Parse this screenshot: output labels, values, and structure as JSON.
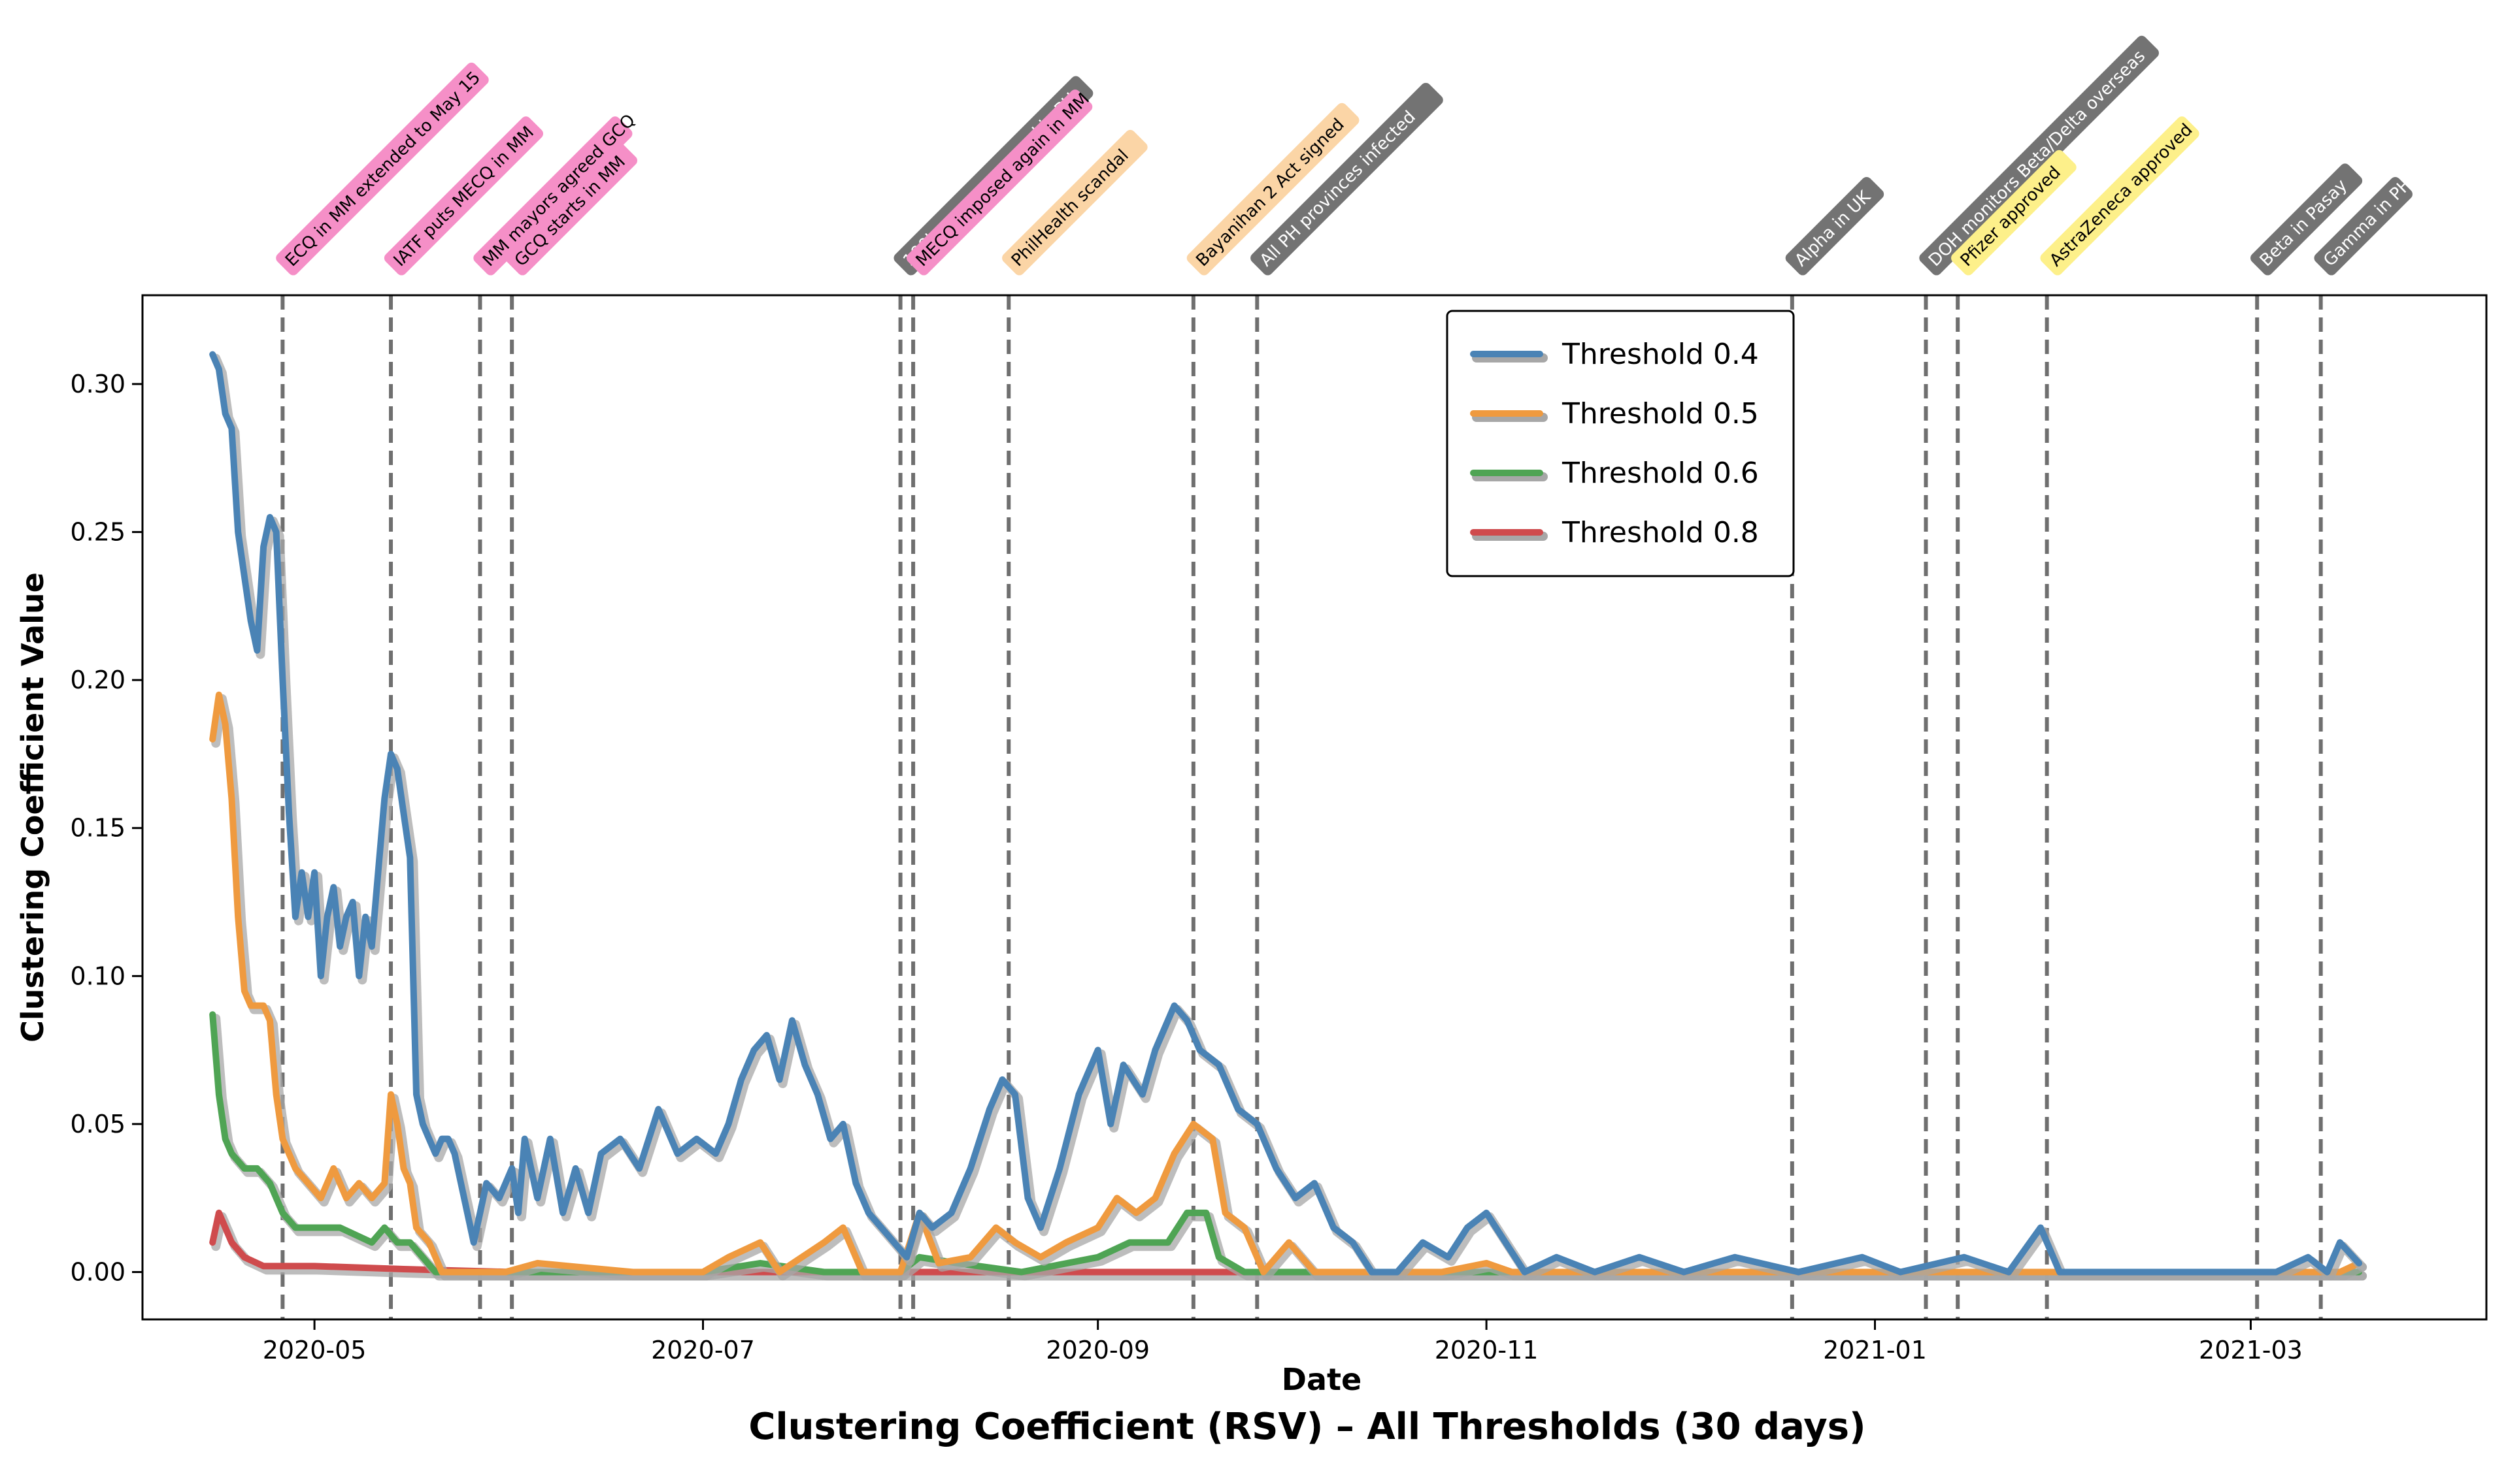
{
  "chart_data": {
    "type": "line",
    "title": "Clustering Coefficient (RSV) – All Thresholds (30 days)",
    "xlabel": "Date",
    "ylabel": "Clustering Coefficient Value",
    "x_type": "date",
    "xlim": [
      "2020-04-04",
      "2021-04-07"
    ],
    "ylim": [
      -0.016,
      0.33
    ],
    "x_ticks": [
      {
        "date": "2020-05-01",
        "label": "2020-05"
      },
      {
        "date": "2020-07-01",
        "label": "2020-07"
      },
      {
        "date": "2020-09-01",
        "label": "2020-09"
      },
      {
        "date": "2020-11-01",
        "label": "2020-11"
      },
      {
        "date": "2021-01-01",
        "label": "2021-01"
      },
      {
        "date": "2021-03-01",
        "label": "2021-03"
      }
    ],
    "y_ticks": [
      0.0,
      0.05,
      0.1,
      0.15,
      0.2,
      0.25,
      0.3
    ],
    "y_tick_labels": [
      "0.00",
      "0.05",
      "0.10",
      "0.15",
      "0.20",
      "0.25",
      "0.30"
    ],
    "grid": false,
    "legend_position": "top-center",
    "series": [
      {
        "name": "Threshold 0.4",
        "color": "#4a83b5",
        "points": [
          [
            "2020-04-15",
            0.31
          ],
          [
            "2020-04-16",
            0.305
          ],
          [
            "2020-04-17",
            0.29
          ],
          [
            "2020-04-18",
            0.285
          ],
          [
            "2020-04-19",
            0.25
          ],
          [
            "2020-04-20",
            0.235
          ],
          [
            "2020-04-21",
            0.22
          ],
          [
            "2020-04-22",
            0.21
          ],
          [
            "2020-04-23",
            0.245
          ],
          [
            "2020-04-24",
            0.255
          ],
          [
            "2020-04-25",
            0.25
          ],
          [
            "2020-04-26",
            0.2
          ],
          [
            "2020-04-27",
            0.155
          ],
          [
            "2020-04-28",
            0.12
          ],
          [
            "2020-04-29",
            0.135
          ],
          [
            "2020-04-30",
            0.12
          ],
          [
            "2020-05-01",
            0.135
          ],
          [
            "2020-05-02",
            0.1
          ],
          [
            "2020-05-03",
            0.12
          ],
          [
            "2020-05-04",
            0.13
          ],
          [
            "2020-05-05",
            0.11
          ],
          [
            "2020-05-06",
            0.12
          ],
          [
            "2020-05-07",
            0.125
          ],
          [
            "2020-05-08",
            0.1
          ],
          [
            "2020-05-09",
            0.12
          ],
          [
            "2020-05-10",
            0.11
          ],
          [
            "2020-05-11",
            0.135
          ],
          [
            "2020-05-12",
            0.16
          ],
          [
            "2020-05-13",
            0.175
          ],
          [
            "2020-05-14",
            0.17
          ],
          [
            "2020-05-15",
            0.155
          ],
          [
            "2020-05-16",
            0.14
          ],
          [
            "2020-05-17",
            0.06
          ],
          [
            "2020-05-18",
            0.05
          ],
          [
            "2020-05-19",
            0.045
          ],
          [
            "2020-05-20",
            0.04
          ],
          [
            "2020-05-21",
            0.045
          ],
          [
            "2020-05-22",
            0.045
          ],
          [
            "2020-05-23",
            0.04
          ],
          [
            "2020-05-24",
            0.03
          ],
          [
            "2020-05-26",
            0.01
          ],
          [
            "2020-05-28",
            0.03
          ],
          [
            "2020-05-30",
            0.025
          ],
          [
            "2020-06-01",
            0.035
          ],
          [
            "2020-06-02",
            0.02
          ],
          [
            "2020-06-03",
            0.045
          ],
          [
            "2020-06-05",
            0.025
          ],
          [
            "2020-06-07",
            0.045
          ],
          [
            "2020-06-09",
            0.02
          ],
          [
            "2020-06-11",
            0.035
          ],
          [
            "2020-06-13",
            0.02
          ],
          [
            "2020-06-15",
            0.04
          ],
          [
            "2020-06-18",
            0.045
          ],
          [
            "2020-06-21",
            0.035
          ],
          [
            "2020-06-24",
            0.055
          ],
          [
            "2020-06-27",
            0.04
          ],
          [
            "2020-06-30",
            0.045
          ],
          [
            "2020-07-03",
            0.04
          ],
          [
            "2020-07-05",
            0.05
          ],
          [
            "2020-07-07",
            0.065
          ],
          [
            "2020-07-09",
            0.075
          ],
          [
            "2020-07-11",
            0.08
          ],
          [
            "2020-07-13",
            0.065
          ],
          [
            "2020-07-15",
            0.085
          ],
          [
            "2020-07-17",
            0.07
          ],
          [
            "2020-07-19",
            0.06
          ],
          [
            "2020-07-21",
            0.045
          ],
          [
            "2020-07-23",
            0.05
          ],
          [
            "2020-07-25",
            0.03
          ],
          [
            "2020-07-27",
            0.02
          ],
          [
            "2020-07-29",
            0.015
          ],
          [
            "2020-07-31",
            0.01
          ],
          [
            "2020-08-02",
            0.005
          ],
          [
            "2020-08-04",
            0.02
          ],
          [
            "2020-08-06",
            0.015
          ],
          [
            "2020-08-09",
            0.02
          ],
          [
            "2020-08-12",
            0.035
          ],
          [
            "2020-08-15",
            0.055
          ],
          [
            "2020-08-17",
            0.065
          ],
          [
            "2020-08-19",
            0.06
          ],
          [
            "2020-08-21",
            0.025
          ],
          [
            "2020-08-23",
            0.015
          ],
          [
            "2020-08-26",
            0.035
          ],
          [
            "2020-08-29",
            0.06
          ],
          [
            "2020-09-01",
            0.075
          ],
          [
            "2020-09-03",
            0.05
          ],
          [
            "2020-09-05",
            0.07
          ],
          [
            "2020-09-08",
            0.06
          ],
          [
            "2020-09-10",
            0.075
          ],
          [
            "2020-09-13",
            0.09
          ],
          [
            "2020-09-15",
            0.085
          ],
          [
            "2020-09-17",
            0.075
          ],
          [
            "2020-09-20",
            0.07
          ],
          [
            "2020-09-23",
            0.055
          ],
          [
            "2020-09-26",
            0.05
          ],
          [
            "2020-09-29",
            0.035
          ],
          [
            "2020-10-02",
            0.025
          ],
          [
            "2020-10-05",
            0.03
          ],
          [
            "2020-10-08",
            0.015
          ],
          [
            "2020-10-11",
            0.01
          ],
          [
            "2020-10-14",
            0.0
          ],
          [
            "2020-10-18",
            0.0
          ],
          [
            "2020-10-22",
            0.01
          ],
          [
            "2020-10-26",
            0.005
          ],
          [
            "2020-10-29",
            0.015
          ],
          [
            "2020-11-01",
            0.02
          ],
          [
            "2020-11-04",
            0.01
          ],
          [
            "2020-11-07",
            0.0
          ],
          [
            "2020-11-12",
            0.005
          ],
          [
            "2020-11-18",
            0.0
          ],
          [
            "2020-11-25",
            0.005
          ],
          [
            "2020-12-02",
            0.0
          ],
          [
            "2020-12-10",
            0.005
          ],
          [
            "2020-12-20",
            0.0
          ],
          [
            "2020-12-30",
            0.005
          ],
          [
            "2021-01-05",
            0.0
          ],
          [
            "2021-01-15",
            0.005
          ],
          [
            "2021-01-22",
            0.0
          ],
          [
            "2021-01-27",
            0.015
          ],
          [
            "2021-01-30",
            0.0
          ],
          [
            "2021-02-10",
            0.0
          ],
          [
            "2021-02-20",
            0.0
          ],
          [
            "2021-03-05",
            0.0
          ],
          [
            "2021-03-10",
            0.005
          ],
          [
            "2021-03-13",
            0.0
          ],
          [
            "2021-03-15",
            0.01
          ],
          [
            "2021-03-18",
            0.003
          ]
        ]
      },
      {
        "name": "Threshold 0.5",
        "color": "#ef9a3f",
        "points": [
          [
            "2020-04-15",
            0.18
          ],
          [
            "2020-04-16",
            0.195
          ],
          [
            "2020-04-17",
            0.185
          ],
          [
            "2020-04-18",
            0.16
          ],
          [
            "2020-04-19",
            0.12
          ],
          [
            "2020-04-20",
            0.095
          ],
          [
            "2020-04-21",
            0.09
          ],
          [
            "2020-04-22",
            0.09
          ],
          [
            "2020-04-23",
            0.09
          ],
          [
            "2020-04-24",
            0.085
          ],
          [
            "2020-04-25",
            0.06
          ],
          [
            "2020-04-26",
            0.045
          ],
          [
            "2020-04-27",
            0.04
          ],
          [
            "2020-04-28",
            0.035
          ],
          [
            "2020-04-30",
            0.03
          ],
          [
            "2020-05-02",
            0.025
          ],
          [
            "2020-05-04",
            0.035
          ],
          [
            "2020-05-06",
            0.025
          ],
          [
            "2020-05-08",
            0.03
          ],
          [
            "2020-05-10",
            0.025
          ],
          [
            "2020-05-12",
            0.03
          ],
          [
            "2020-05-13",
            0.06
          ],
          [
            "2020-05-14",
            0.05
          ],
          [
            "2020-05-15",
            0.035
          ],
          [
            "2020-05-16",
            0.03
          ],
          [
            "2020-05-17",
            0.015
          ],
          [
            "2020-05-19",
            0.01
          ],
          [
            "2020-05-21",
            0.0
          ],
          [
            "2020-05-31",
            0.0
          ],
          [
            "2020-06-05",
            0.003
          ],
          [
            "2020-06-20",
            0.0
          ],
          [
            "2020-07-01",
            0.0
          ],
          [
            "2020-07-05",
            0.005
          ],
          [
            "2020-07-10",
            0.01
          ],
          [
            "2020-07-13",
            0.0
          ],
          [
            "2020-07-20",
            0.01
          ],
          [
            "2020-07-23",
            0.015
          ],
          [
            "2020-07-26",
            0.0
          ],
          [
            "2020-08-01",
            0.0
          ],
          [
            "2020-08-04",
            0.02
          ],
          [
            "2020-08-07",
            0.003
          ],
          [
            "2020-08-12",
            0.005
          ],
          [
            "2020-08-16",
            0.015
          ],
          [
            "2020-08-19",
            0.01
          ],
          [
            "2020-08-23",
            0.005
          ],
          [
            "2020-08-27",
            0.01
          ],
          [
            "2020-09-01",
            0.015
          ],
          [
            "2020-09-04",
            0.025
          ],
          [
            "2020-09-07",
            0.02
          ],
          [
            "2020-09-10",
            0.025
          ],
          [
            "2020-09-13",
            0.04
          ],
          [
            "2020-09-16",
            0.05
          ],
          [
            "2020-09-19",
            0.045
          ],
          [
            "2020-09-21",
            0.02
          ],
          [
            "2020-09-24",
            0.015
          ],
          [
            "2020-09-27",
            0.0
          ],
          [
            "2020-10-01",
            0.01
          ],
          [
            "2020-10-05",
            0.0
          ],
          [
            "2020-10-25",
            0.0
          ],
          [
            "2020-11-01",
            0.003
          ],
          [
            "2020-11-05",
            0.0
          ],
          [
            "2021-03-15",
            0.0
          ],
          [
            "2021-03-18",
            0.003
          ]
        ]
      },
      {
        "name": "Threshold 0.6",
        "color": "#4fa454",
        "points": [
          [
            "2020-04-15",
            0.087
          ],
          [
            "2020-04-16",
            0.06
          ],
          [
            "2020-04-17",
            0.045
          ],
          [
            "2020-04-18",
            0.04
          ],
          [
            "2020-04-20",
            0.035
          ],
          [
            "2020-04-22",
            0.035
          ],
          [
            "2020-04-24",
            0.03
          ],
          [
            "2020-04-26",
            0.02
          ],
          [
            "2020-04-28",
            0.015
          ],
          [
            "2020-05-05",
            0.015
          ],
          [
            "2020-05-10",
            0.01
          ],
          [
            "2020-05-12",
            0.015
          ],
          [
            "2020-05-14",
            0.01
          ],
          [
            "2020-05-16",
            0.01
          ],
          [
            "2020-05-18",
            0.005
          ],
          [
            "2020-05-20",
            0.0
          ],
          [
            "2020-07-01",
            0.0
          ],
          [
            "2020-07-10",
            0.003
          ],
          [
            "2020-07-20",
            0.0
          ],
          [
            "2020-08-01",
            0.0
          ],
          [
            "2020-08-04",
            0.005
          ],
          [
            "2020-08-10",
            0.003
          ],
          [
            "2020-08-20",
            0.0
          ],
          [
            "2020-09-01",
            0.005
          ],
          [
            "2020-09-06",
            0.01
          ],
          [
            "2020-09-12",
            0.01
          ],
          [
            "2020-09-15",
            0.02
          ],
          [
            "2020-09-18",
            0.02
          ],
          [
            "2020-09-20",
            0.005
          ],
          [
            "2020-09-24",
            0.0
          ],
          [
            "2021-03-18",
            0.0
          ]
        ]
      },
      {
        "name": "Threshold 0.8",
        "color": "#cf4b4d",
        "points": [
          [
            "2020-04-15",
            0.01
          ],
          [
            "2020-04-16",
            0.02
          ],
          [
            "2020-04-17",
            0.015
          ],
          [
            "2020-04-18",
            0.01
          ],
          [
            "2020-04-20",
            0.005
          ],
          [
            "2020-04-23",
            0.002
          ],
          [
            "2020-05-01",
            0.002
          ],
          [
            "2020-05-15",
            0.001
          ],
          [
            "2020-06-01",
            0.0
          ],
          [
            "2021-03-18",
            0.0
          ]
        ]
      }
    ],
    "events": [
      {
        "date": "2020-04-26",
        "label": "ECQ in MM extended to May 15",
        "color": "#f58fc7"
      },
      {
        "date": "2020-05-13",
        "label": "IATF puts MECQ in MM",
        "color": "#f58fc7"
      },
      {
        "date": "2020-05-27",
        "label": "MM mayors agreed GCQ",
        "color": "#f58fc7"
      },
      {
        "date": "2020-06-01",
        "label": "GCQ starts in MM",
        "color": "#f58fc7"
      },
      {
        "date": "2020-08-01",
        "label": "100k cases surpassed in PH",
        "color": "#737373"
      },
      {
        "date": "2020-08-03",
        "label": "MECQ imposed again in MM",
        "color": "#f58fc7"
      },
      {
        "date": "2020-08-18",
        "label": "PhilHealth scandal",
        "color": "#fbd5a6"
      },
      {
        "date": "2020-09-16",
        "label": "Bayanihan 2 Act signed",
        "color": "#fbd5a6"
      },
      {
        "date": "2020-09-26",
        "label": "All PH provinces infected",
        "color": "#737373"
      },
      {
        "date": "2020-12-19",
        "label": "Alpha in UK",
        "color": "#737373"
      },
      {
        "date": "2021-01-09",
        "label": "DOH monitors Beta/Delta overseas",
        "color": "#737373"
      },
      {
        "date": "2021-01-14",
        "label": "Pfizer approved",
        "color": "#fdf08a"
      },
      {
        "date": "2021-01-28",
        "label": "AstraZeneca approved",
        "color": "#fdf08a"
      },
      {
        "date": "2021-03-02",
        "label": "Beta in Pasay",
        "color": "#737373"
      },
      {
        "date": "2021-03-12",
        "label": "Gamma in PH",
        "color": "#737373"
      }
    ]
  }
}
